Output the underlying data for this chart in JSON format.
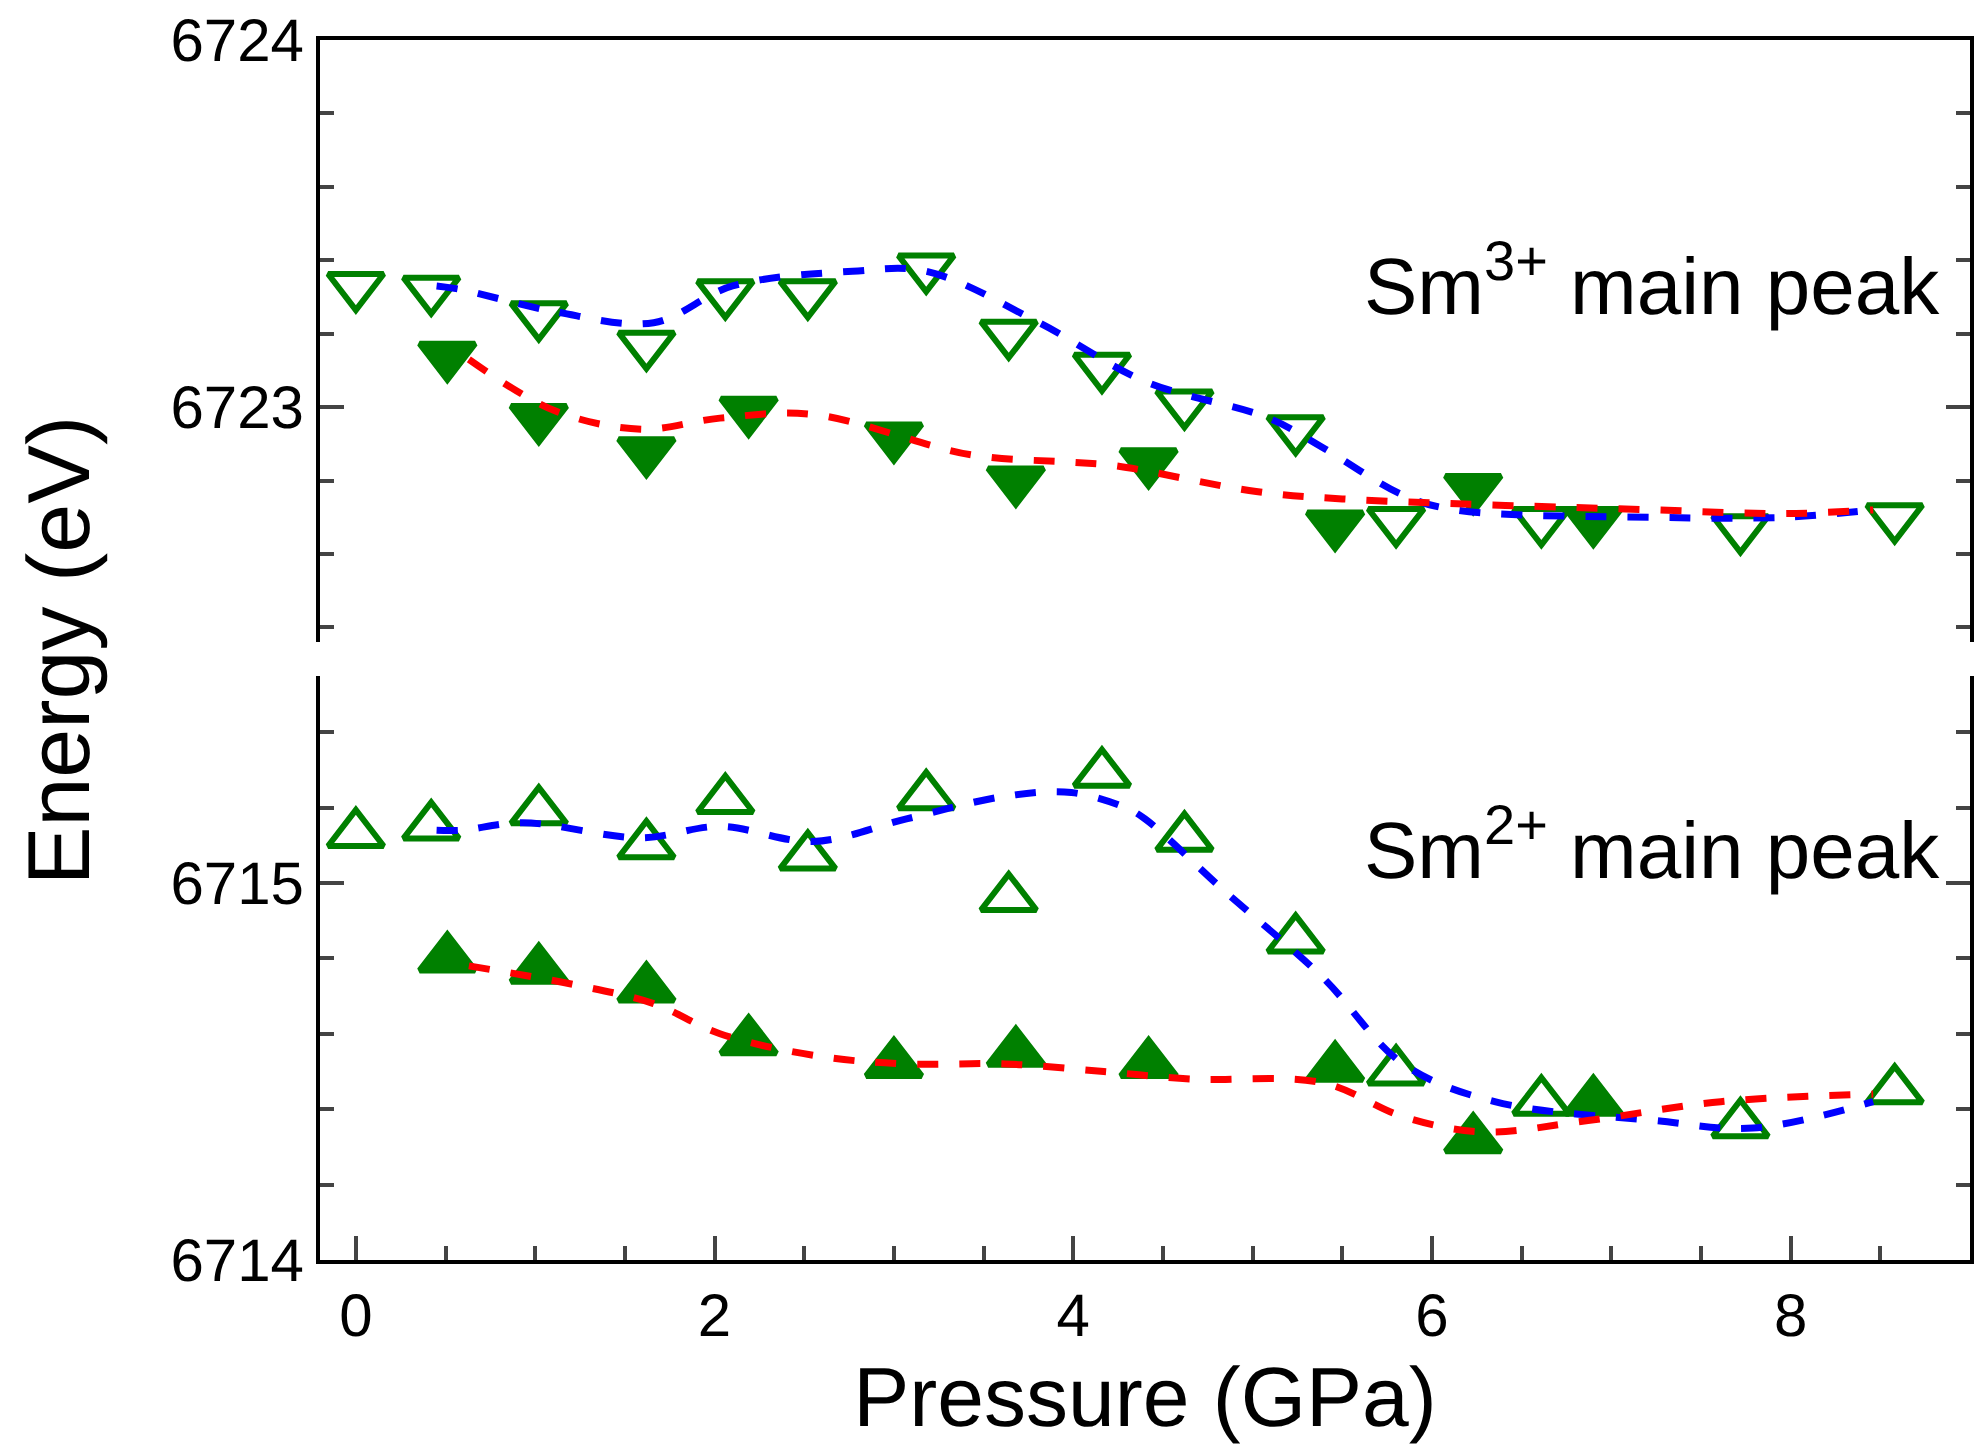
{
  "chart_data": [
    {
      "type": "scatter",
      "ylabel": "Energy (eV)",
      "annotations": [
        "Sm$^{3+}$ main peak"
      ],
      "xlim": [
        -0.2,
        9.0
      ],
      "ylim": [
        6722.36,
        6724
      ],
      "yticks": [
        6723,
        6724,
        {
          "value": 6722.4,
          "label": null
        },
        {
          "value": 6722.6,
          "label": null
        },
        {
          "value": 6722.8,
          "label": null
        },
        {
          "value": 6723.2,
          "label": null
        },
        {
          "value": 6723.4,
          "label": null
        },
        {
          "value": 6723.6,
          "label": null
        },
        {
          "value": 6723.8,
          "label": null
        }
      ],
      "tick_labels": "y",
      "series": [
        {
          "type": "line",
          "color": "#0000ff",
          "line_style": "dashed",
          "marker": "none",
          "x": [
            0.45,
            0.59,
            1.11,
            1.66,
            2.1,
            2.77,
            3.18,
            3.81,
            4.4,
            5.09,
            5.39,
            5.84,
            6.13,
            7.24,
            7.97,
            8.46
          ],
          "values": [
            6723.33,
            6723.32,
            6723.26,
            6723.23,
            6723.33,
            6723.37,
            6723.37,
            6723.23,
            6723.07,
            6722.97,
            6722.89,
            6722.76,
            6722.72,
            6722.7,
            6722.7,
            6722.72
          ]
        },
        {
          "type": "line",
          "color": "#ff0000",
          "line_style": "dashed",
          "marker": "none",
          "x": [
            0.63,
            1.11,
            1.59,
            2.03,
            2.55,
            3.43,
            3.99,
            4.24,
            5.02,
            5.5,
            7.24,
            7.97,
            8.46
          ],
          "values": [
            6723.13,
            6722.99,
            6722.94,
            6722.97,
            6722.98,
            6722.87,
            6722.85,
            6722.84,
            6722.77,
            6722.75,
            6722.72,
            6722.71,
            6722.72
          ]
        },
        {
          "color": "#008000",
          "marker": "triangle-down-open",
          "x": [
            0.0,
            0.42,
            1.02,
            1.62,
            2.06,
            2.52,
            3.18,
            3.64,
            4.16,
            4.62,
            5.24,
            5.8,
            6.61,
            7.72,
            8.58
          ],
          "values": [
            6723.33,
            6723.32,
            6723.25,
            6723.17,
            6723.31,
            6723.31,
            6723.38,
            6723.2,
            6723.11,
            6723.01,
            6722.94,
            6722.69,
            6722.69,
            6722.67,
            6722.7
          ]
        },
        {
          "color": "#008000",
          "marker": "triangle-down",
          "x": [
            0.51,
            1.02,
            1.62,
            2.19,
            3.0,
            3.68,
            4.42,
            5.46,
            6.23,
            6.9
          ],
          "values": [
            6723.14,
            6722.97,
            6722.88,
            6722.99,
            6722.92,
            6722.8,
            6722.85,
            6722.68,
            6722.78,
            6722.69
          ]
        }
      ]
    },
    {
      "type": "scatter",
      "xlabel": "Pressure (GPa)",
      "annotations": [
        "Sm$^{2+}$ main peak"
      ],
      "xlim": [
        -0.2,
        9.0
      ],
      "ylim": [
        6714,
        6715.55
      ],
      "xticks": [
        0,
        2,
        4,
        6,
        8,
        {
          "value": 0.5,
          "label": null
        },
        {
          "value": 1,
          "label": null
        },
        {
          "value": 1.5,
          "label": null
        },
        {
          "value": 2.5,
          "label": null
        },
        {
          "value": 3,
          "label": null
        },
        {
          "value": 3.5,
          "label": null
        },
        {
          "value": 4.5,
          "label": null
        },
        {
          "value": 5,
          "label": null
        },
        {
          "value": 5.5,
          "label": null
        },
        {
          "value": 6.5,
          "label": null
        },
        {
          "value": 7,
          "label": null
        },
        {
          "value": 7.5,
          "label": null
        },
        {
          "value": 8.5,
          "label": null
        }
      ],
      "yticks": [
        6714,
        6715,
        {
          "value": 6714.2,
          "label": null
        },
        {
          "value": 6714.4,
          "label": null
        },
        {
          "value": 6714.6,
          "label": null
        },
        {
          "value": 6714.8,
          "label": null
        },
        {
          "value": 6715.2,
          "label": null
        },
        {
          "value": 6715.4,
          "label": null
        }
      ],
      "series": [
        {
          "type": "line",
          "color": "#0000ff",
          "line_style": "dashed",
          "marker": "none",
          "x": [
            0.45,
            0.59,
            0.93,
            1.59,
            2.03,
            2.55,
            3.07,
            3.62,
            3.99,
            4.29,
            4.4,
            4.84,
            5.39,
            5.84,
            6.35,
            7.24,
            7.79,
            8.46
          ],
          "values": [
            6715.14,
            6715.14,
            6715.16,
            6715.12,
            6715.15,
            6715.11,
            6715.17,
            6715.23,
            6715.24,
            6715.2,
            6715.17,
            6714.98,
            6714.75,
            6714.52,
            6714.42,
            6714.37,
            6714.35,
            6714.42
          ]
        },
        {
          "type": "line",
          "color": "#ff0000",
          "line_style": "dashed",
          "marker": "none",
          "x": [
            0.63,
            1.22,
            1.66,
            2.03,
            2.59,
            3.07,
            3.62,
            4.17,
            4.65,
            5.39,
            5.84,
            6.28,
            6.87,
            7.61,
            8.46
          ],
          "values": [
            6714.78,
            6714.73,
            6714.68,
            6714.6,
            6714.54,
            6714.52,
            6714.52,
            6714.5,
            6714.48,
            6714.47,
            6714.38,
            6714.34,
            6714.37,
            6714.42,
            6714.44
          ]
        },
        {
          "color": "#008000",
          "marker": "triangle-up-open",
          "x": [
            0.0,
            0.42,
            1.02,
            1.62,
            2.06,
            2.52,
            3.18,
            3.64,
            4.16,
            4.62,
            5.24,
            5.8,
            6.61,
            7.72,
            8.58
          ],
          "values": [
            6715.13,
            6715.15,
            6715.19,
            6715.1,
            6715.22,
            6715.07,
            6715.23,
            6714.96,
            6715.29,
            6715.12,
            6714.85,
            6714.5,
            6714.42,
            6714.36,
            6714.45
          ]
        },
        {
          "color": "#008000",
          "marker": "triangle-up",
          "x": [
            0.51,
            1.02,
            1.62,
            2.19,
            3.0,
            3.68,
            4.42,
            5.46,
            6.23,
            6.9
          ],
          "values": [
            6714.8,
            6714.77,
            6714.72,
            6714.58,
            6714.52,
            6714.55,
            6714.52,
            6714.51,
            6714.32,
            6714.42
          ]
        }
      ]
    }
  ]
}
